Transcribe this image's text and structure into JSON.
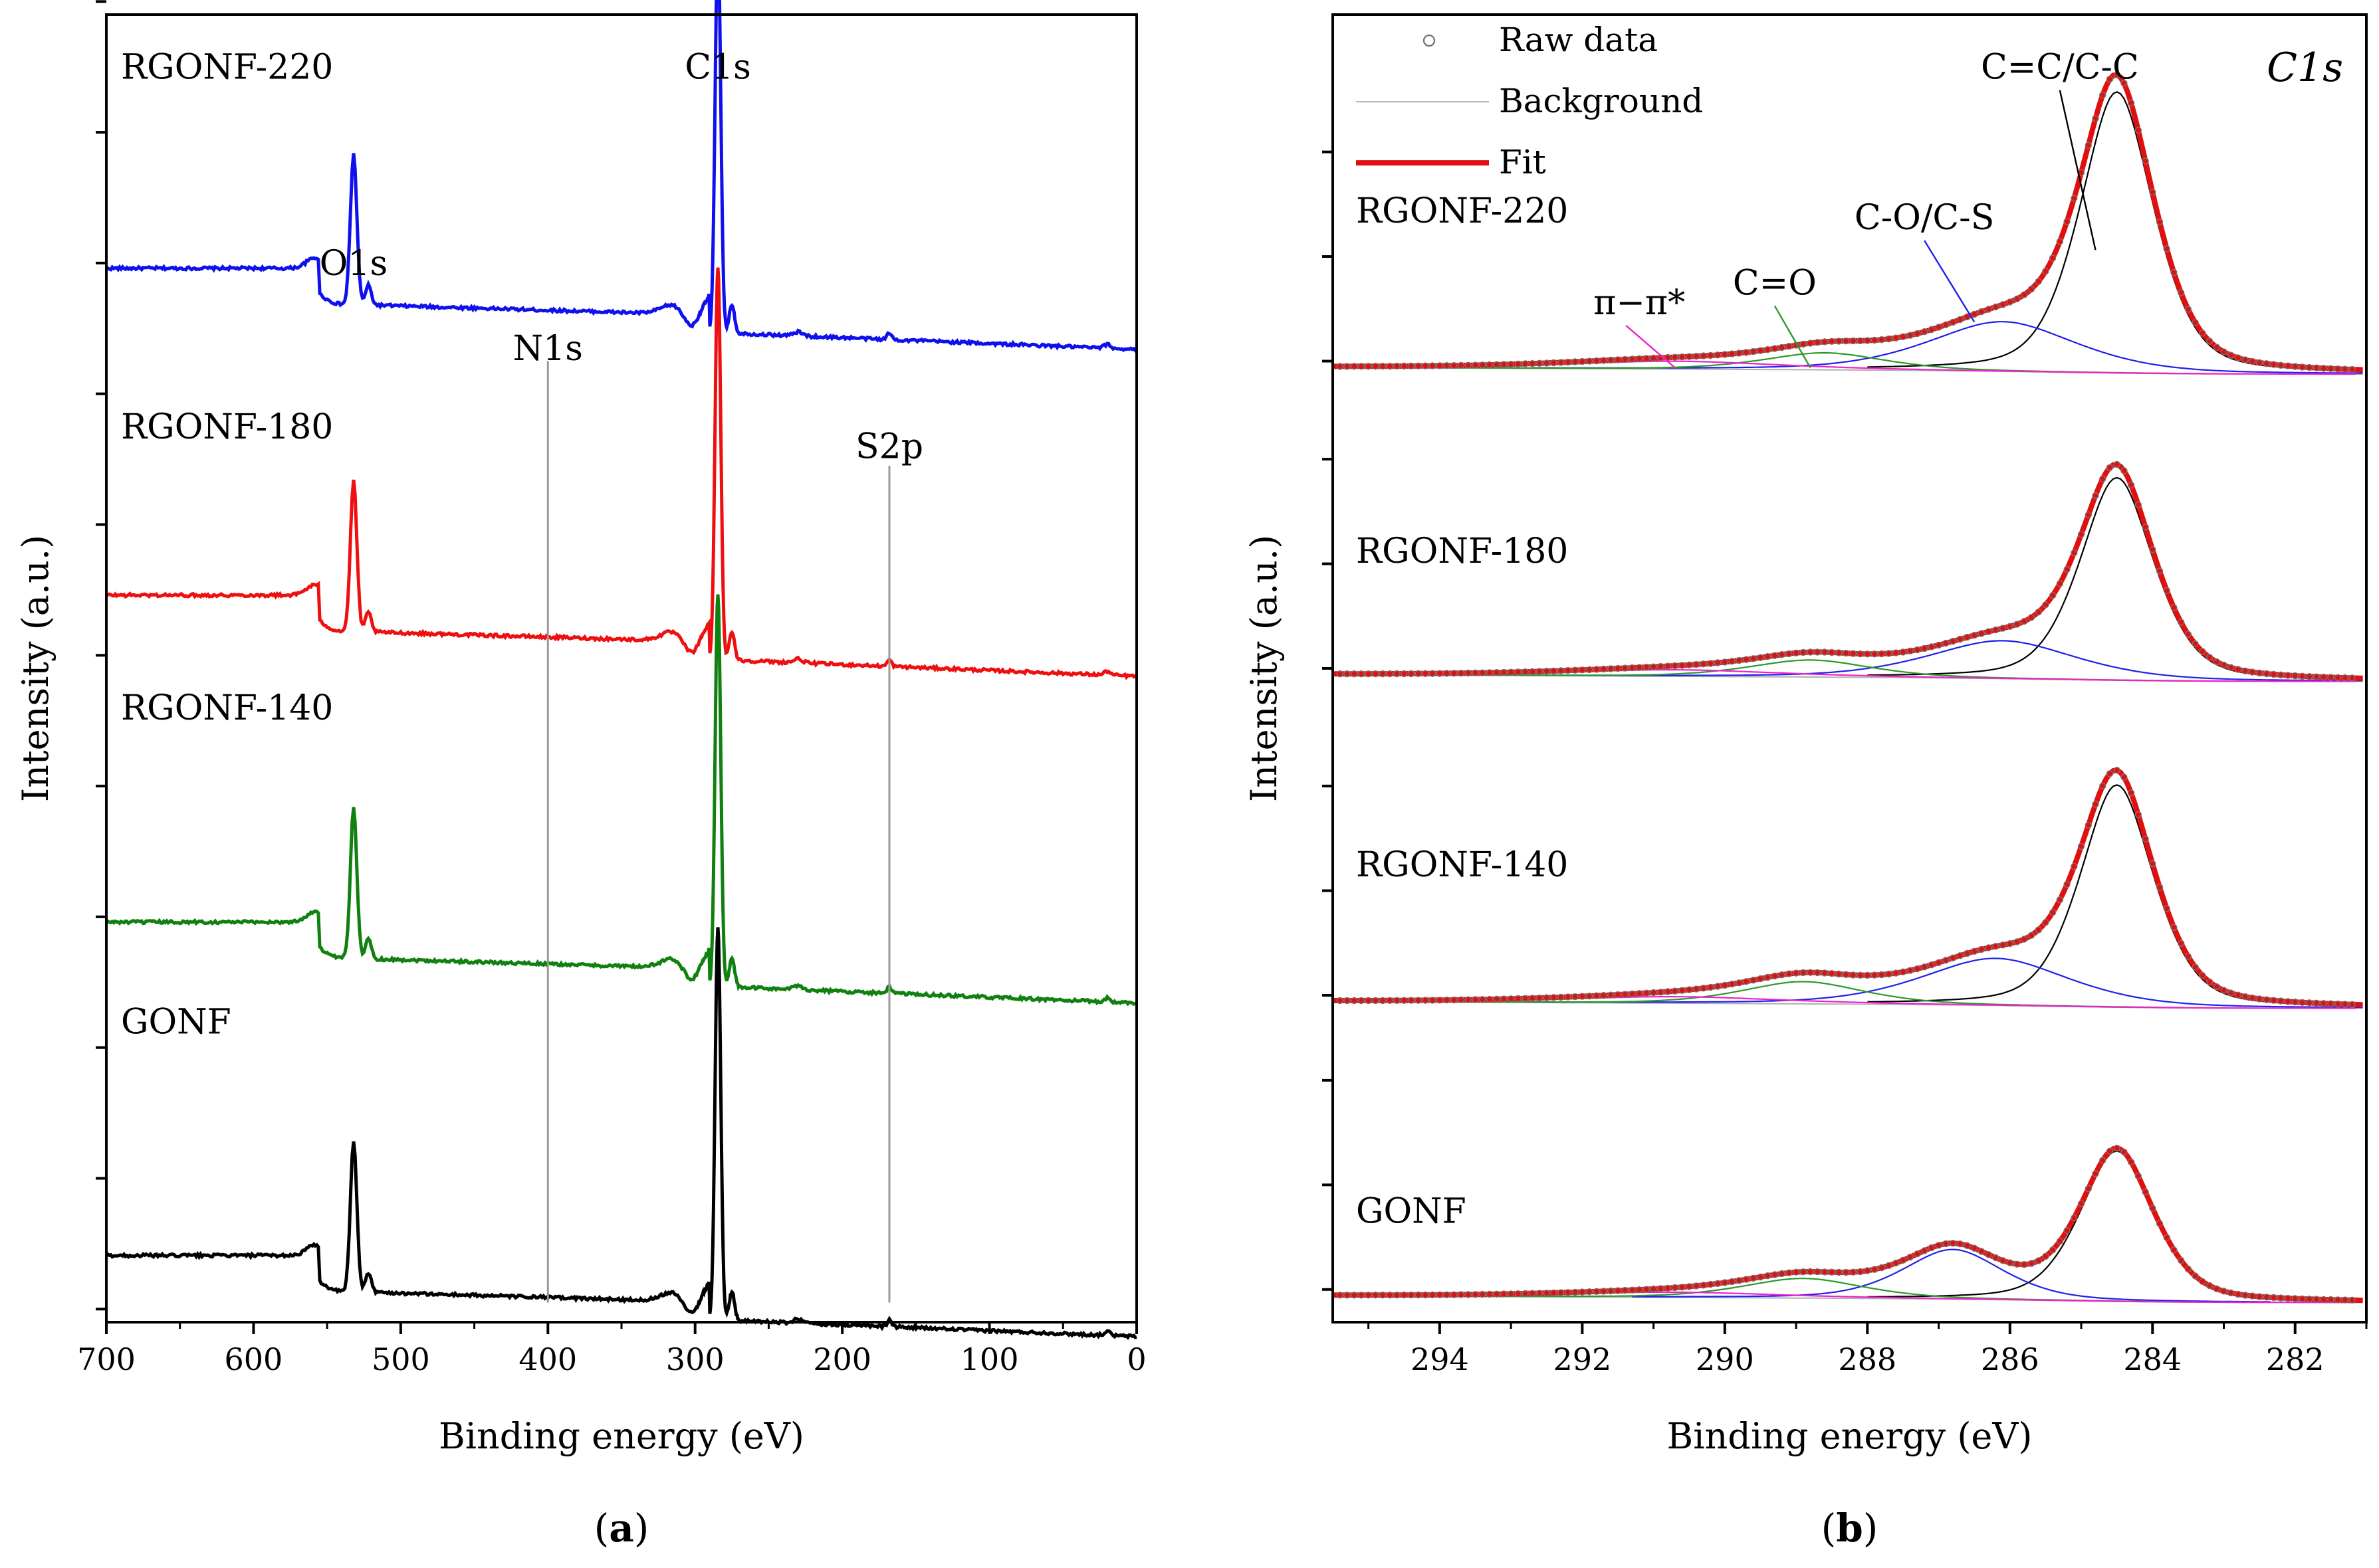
{
  "figure": {
    "panel_a_label": {
      "open": "(",
      "letter": "a",
      "close": ")"
    },
    "panel_b_label": {
      "open": "(",
      "letter": "b",
      "close": ")"
    }
  },
  "chart_data": [
    {
      "type": "line",
      "panel": "a",
      "title": "",
      "xlabel": "Binding energy (eV)",
      "ylabel": "Intensity (a.u.)",
      "xlim": [
        700,
        0
      ],
      "x_reversed": true,
      "x_ticks": [
        700,
        600,
        500,
        400,
        300,
        200,
        100,
        0
      ],
      "ylim": [
        0,
        100
      ],
      "y_tick_labels_shown": false,
      "y_ticks": [
        1,
        11,
        21,
        31,
        41,
        51,
        61,
        71,
        81,
        91,
        101
      ],
      "colors": {
        "RGONF-220": "#1010ee",
        "RGONF-180": "#ee1010",
        "RGONF-140": "#108010",
        "GONF": "#000000",
        "guide": "#999999"
      },
      "series": [
        {
          "name": "RGONF-220",
          "label": "RGONF-220",
          "offset": 75.5,
          "label_y": 96
        },
        {
          "name": "RGONF-180",
          "label": "RGONF-180",
          "offset": 50.5,
          "label_y": 68.5
        },
        {
          "name": "RGONF-140",
          "label": "RGONF-140",
          "offset": 25.5,
          "label_y": 47
        },
        {
          "name": "GONF",
          "label": "GONF",
          "offset": 0,
          "label_y": 23
        }
      ],
      "peak_labels": [
        {
          "text": "O1s",
          "x": 532,
          "y": 81
        },
        {
          "text": "C1s",
          "x": 284.5,
          "y": 96
        },
        {
          "text": "N1s",
          "x": 400,
          "y": 74.5
        },
        {
          "text": "S2p",
          "x": 168,
          "y": 67
        }
      ],
      "guide_lines": [
        {
          "x": 400,
          "y0": 1.5,
          "y1": 73.5
        },
        {
          "x": 168,
          "y0": 1.5,
          "y1": 65.5
        }
      ]
    },
    {
      "type": "line",
      "panel": "b",
      "title": "C1s",
      "xlabel": "Binding energy (eV)",
      "ylabel": "Intensity (a.u.)",
      "xlim": [
        295.5,
        281
      ],
      "x_reversed": true,
      "x_ticks": [
        294,
        292,
        290,
        288,
        286,
        284,
        282
      ],
      "ylim": [
        0,
        100
      ],
      "y_tick_labels_shown": false,
      "colors": {
        "raw": "#777777",
        "background": "#b0b0b0",
        "fit": "#e01010",
        "CC": "#000000",
        "CO": "#2020ee",
        "C=O": "#2a9a2a",
        "pi": "#ee22cc"
      },
      "legend": [
        {
          "label": "Raw data",
          "marker": "circle"
        },
        {
          "label": "Background",
          "marker": "thin-line"
        },
        {
          "label": "Fit",
          "marker": "thick-red-line"
        }
      ],
      "component_labels": [
        {
          "text": "C=C/C-C",
          "x": 285.3,
          "y": 96,
          "pointer_x": 284.8,
          "pointer_y": 82
        },
        {
          "text": "C-O/C-S",
          "x": 287.2,
          "y": 84.5,
          "pointer_x": 286.5,
          "pointer_y": 76.5
        },
        {
          "text": "C=O",
          "x": 289.3,
          "y": 79.5,
          "pointer_x": 288.8,
          "pointer_y": 73
        },
        {
          "text": "π−π*",
          "x": 291.2,
          "y": 78,
          "pointer_x": 290.7,
          "pointer_y": 73
        }
      ],
      "series": [
        {
          "name": "RGONF-220",
          "label": "RGONF-220",
          "baseline": 72.5,
          "label_y": 85,
          "peaks": [
            {
              "component": "C=C/C-C",
              "center": 284.5,
              "height": 21.5,
              "width": 0.55
            },
            {
              "component": "C-O/C-S",
              "center": 286.1,
              "height": 3.8,
              "width": 1.1
            },
            {
              "component": "C=O",
              "center": 288.6,
              "height": 1.3,
              "width": 0.9
            },
            {
              "component": "π−π*",
              "center": 290.7,
              "height": 0.6,
              "width": 1.6
            }
          ]
        },
        {
          "name": "RGONF-180",
          "label": "RGONF-180",
          "baseline": 49,
          "label_y": 59,
          "peaks": [
            {
              "component": "C=C/C-C",
              "center": 284.5,
              "height": 15.5,
              "width": 0.55
            },
            {
              "component": "C-O/C-S",
              "center": 286.1,
              "height": 2.9,
              "width": 1.1
            },
            {
              "component": "C=O",
              "center": 288.8,
              "height": 1.3,
              "width": 0.9
            },
            {
              "component": "π−π*",
              "center": 290.7,
              "height": 0.5,
              "width": 1.6
            }
          ]
        },
        {
          "name": "RGONF-140",
          "label": "RGONF-140",
          "baseline": 24,
          "label_y": 35,
          "peaks": [
            {
              "component": "C=C/C-C",
              "center": 284.5,
              "height": 17,
              "width": 0.55
            },
            {
              "component": "C-O/C-S",
              "center": 286.2,
              "height": 3.6,
              "width": 1.1
            },
            {
              "component": "C=O",
              "center": 288.9,
              "height": 1.7,
              "width": 0.9
            },
            {
              "component": "π−π*",
              "center": 290.7,
              "height": 0.5,
              "width": 1.6
            }
          ]
        },
        {
          "name": "GONF",
          "label": "GONF",
          "baseline": 1.5,
          "label_y": 8.5,
          "peaks": [
            {
              "component": "C=C/C-C",
              "center": 284.5,
              "height": 11.5,
              "width": 0.55
            },
            {
              "component": "C-O/C-S",
              "center": 286.8,
              "height": 3.8,
              "width": 0.75
            },
            {
              "component": "C=O",
              "center": 288.9,
              "height": 1.5,
              "width": 0.9
            },
            {
              "component": "π−π*",
              "center": 290.7,
              "height": 0.4,
              "width": 1.6
            }
          ]
        }
      ]
    }
  ]
}
